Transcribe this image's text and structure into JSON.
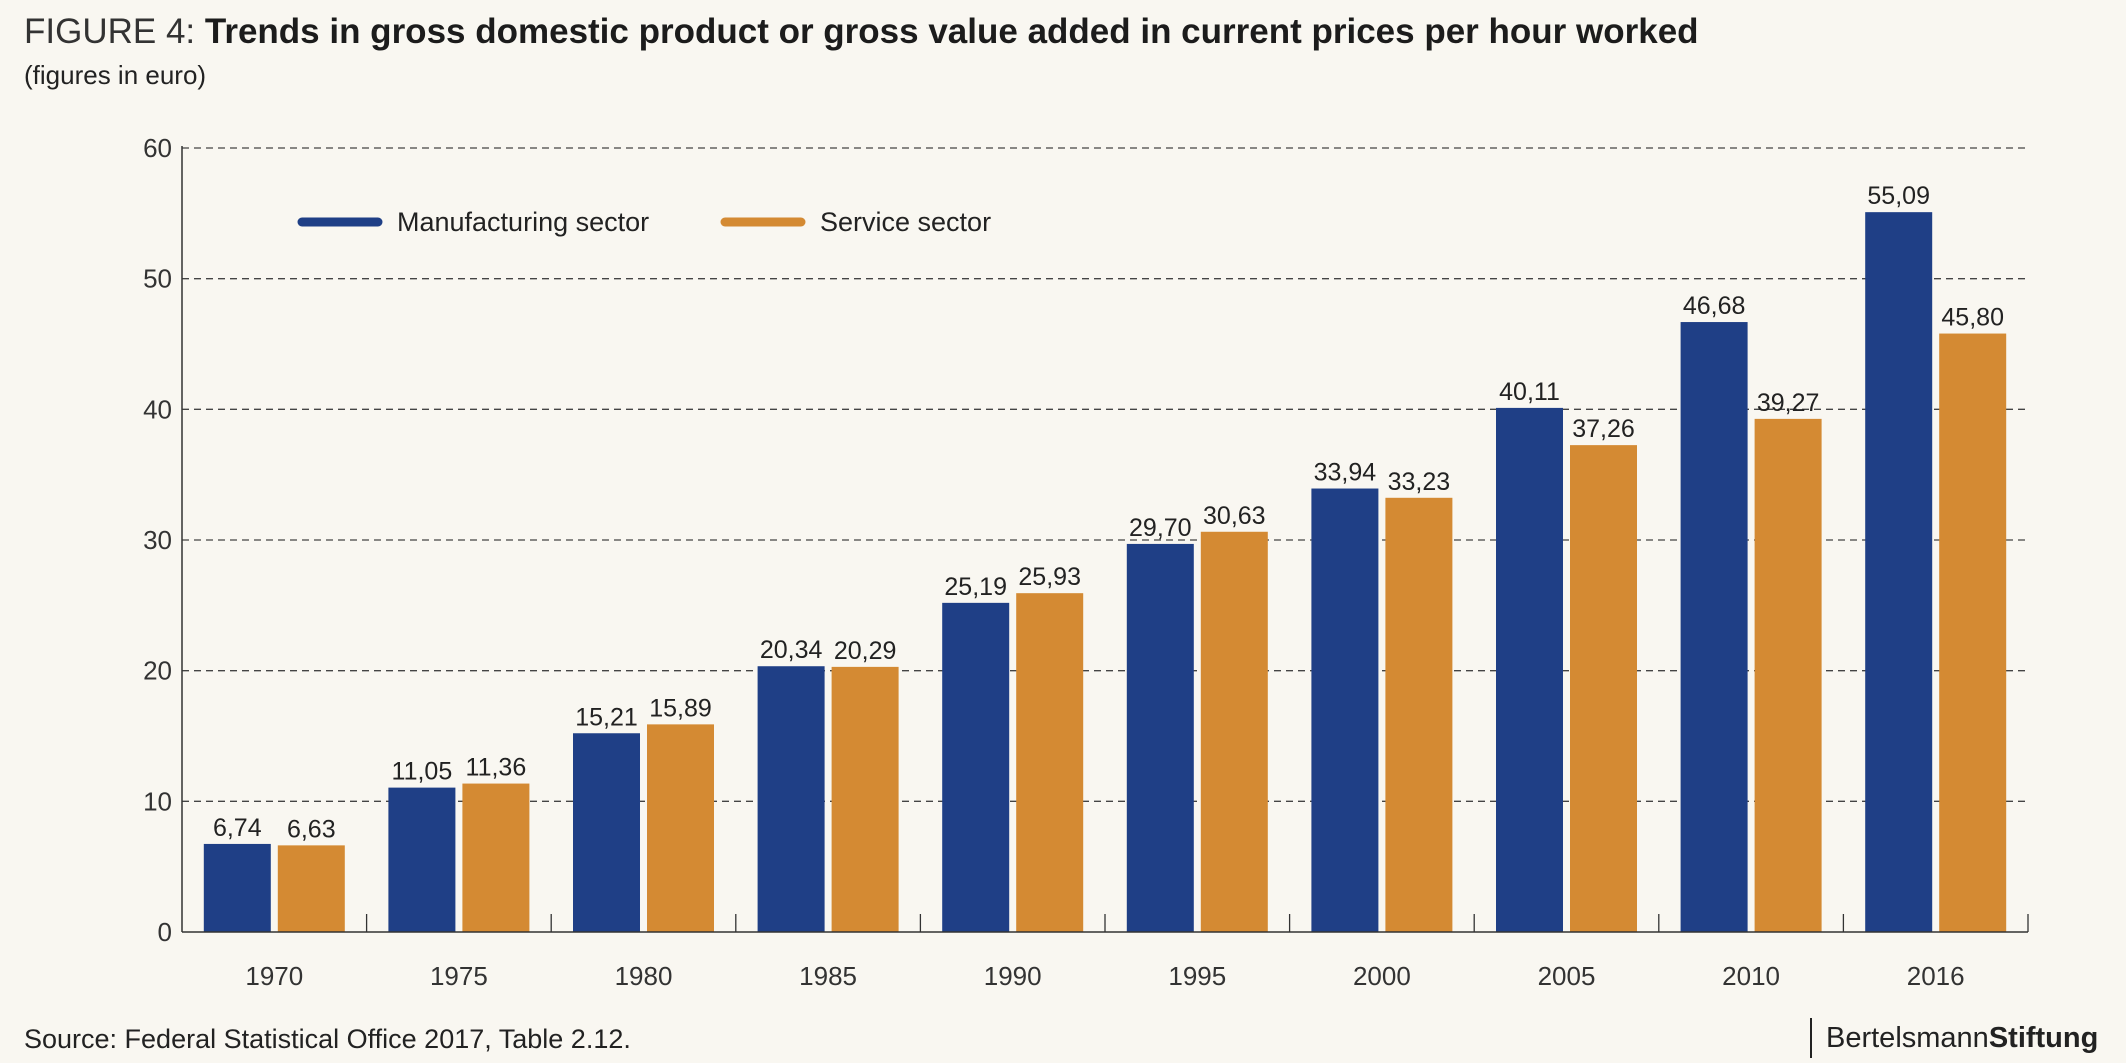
{
  "figure_label": "FIGURE 4: ",
  "title": "Trends in gross domestic product or gross value added in current prices per hour worked",
  "subtitle": "(figures in euro)",
  "source": "Source: Federal Statistical Office 2017, Table 2.12.",
  "brand": {
    "part1": "Bertelsmann",
    "part2": "Stiftung"
  },
  "colors": {
    "manufacturing": "#1f3f86",
    "service": "#d48a33",
    "grid": "#444444"
  },
  "chart_data": {
    "type": "bar",
    "title": "Trends in gross domestic product or gross value added in current prices per hour worked",
    "subtitle": "(figures in euro)",
    "categories": [
      "1970",
      "1975",
      "1980",
      "1985",
      "1990",
      "1995",
      "2000",
      "2005",
      "2010",
      "2016"
    ],
    "series": [
      {
        "name": "Manufacturing sector",
        "values": [
          6.74,
          11.05,
          15.21,
          20.34,
          25.19,
          29.7,
          33.94,
          40.11,
          46.68,
          55.09
        ],
        "labels": [
          "6,74",
          "11,05",
          "15,21",
          "20,34",
          "25,19",
          "29,70",
          "33,94",
          "40,11",
          "46,68",
          "55,09"
        ],
        "color": "#1f3f86"
      },
      {
        "name": "Service sector",
        "values": [
          6.63,
          11.36,
          15.89,
          20.29,
          25.93,
          30.63,
          33.23,
          37.26,
          39.27,
          45.8
        ],
        "labels": [
          "6,63",
          "11,36",
          "15,89",
          "20,29",
          "25,93",
          "30,63",
          "33,23",
          "37,26",
          "39,27",
          "45,80"
        ],
        "color": "#d48a33"
      }
    ],
    "ylim": [
      0,
      60
    ],
    "yticks": [
      0,
      10,
      20,
      30,
      40,
      50,
      60
    ],
    "grid": true,
    "legend_position": "top-left",
    "xlabel": "",
    "ylabel": ""
  }
}
